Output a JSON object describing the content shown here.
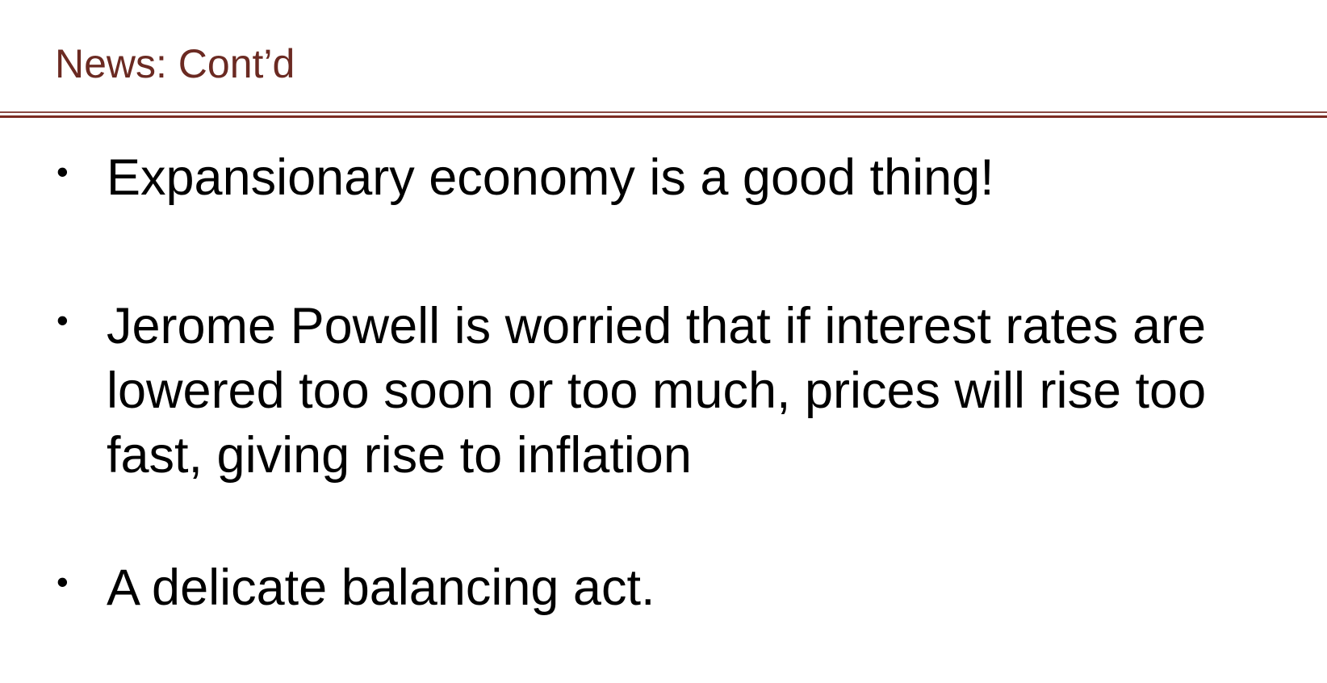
{
  "slide": {
    "title": "News: Cont’d",
    "bullets": [
      "Expansionary economy is a good thing!",
      "Jerome Powell is worried that if interest rates are\nlowered too soon or too much, prices will rise too\nfast, giving rise to inflation",
      "A delicate balancing act."
    ],
    "bullet_glyph": "•"
  },
  "colors": {
    "title": "#6b2a22",
    "rule": "#7a2b22",
    "rule_thin": "#8a4a44",
    "text": "#000000"
  }
}
